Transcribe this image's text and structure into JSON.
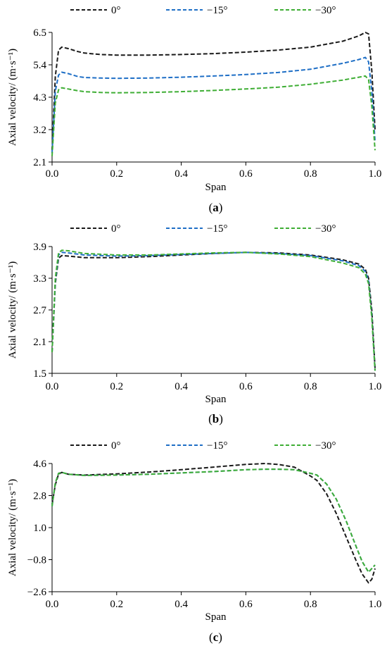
{
  "chart_data": [
    {
      "type": "line",
      "panel_label": "(a)",
      "panel_letter": "a",
      "xlabel": "Span",
      "ylabel": "Axial velocity/ (m·s⁻¹)",
      "xlim": [
        0.0,
        1.0
      ],
      "ylim": [
        2.1,
        6.5
      ],
      "xticks": [
        "0.0",
        "0.2",
        "0.4",
        "0.6",
        "0.8",
        "1.0"
      ],
      "yticks": [
        "2.1",
        "3.2",
        "4.3",
        "5.4",
        "6.5"
      ],
      "grid": false,
      "legend_position": "top",
      "series": [
        {
          "name": "0°",
          "color": "#1a1a1a",
          "x": [
            0.0,
            0.01,
            0.02,
            0.03,
            0.05,
            0.08,
            0.1,
            0.15,
            0.2,
            0.3,
            0.4,
            0.5,
            0.6,
            0.7,
            0.8,
            0.9,
            0.95,
            0.97,
            0.98,
            0.99,
            1.0
          ],
          "y": [
            2.5,
            5.0,
            5.9,
            6.0,
            5.95,
            5.85,
            5.8,
            5.75,
            5.73,
            5.73,
            5.75,
            5.78,
            5.83,
            5.9,
            6.0,
            6.2,
            6.38,
            6.5,
            6.45,
            5.2,
            3.2
          ]
        },
        {
          "name": "−15°",
          "color": "#1f6fc6",
          "x": [
            0.0,
            0.01,
            0.02,
            0.03,
            0.05,
            0.08,
            0.1,
            0.15,
            0.2,
            0.3,
            0.4,
            0.5,
            0.6,
            0.7,
            0.8,
            0.9,
            0.95,
            0.97,
            0.98,
            0.99,
            1.0
          ],
          "y": [
            2.4,
            4.5,
            5.05,
            5.15,
            5.1,
            5.0,
            4.97,
            4.95,
            4.94,
            4.95,
            4.98,
            5.02,
            5.07,
            5.14,
            5.25,
            5.45,
            5.58,
            5.65,
            5.5,
            4.5,
            2.8
          ]
        },
        {
          "name": "−30°",
          "color": "#3fae35",
          "x": [
            0.0,
            0.01,
            0.02,
            0.03,
            0.05,
            0.08,
            0.1,
            0.15,
            0.2,
            0.3,
            0.4,
            0.5,
            0.6,
            0.7,
            0.8,
            0.9,
            0.95,
            0.97,
            0.98,
            0.99,
            1.0
          ],
          "y": [
            2.3,
            4.1,
            4.55,
            4.62,
            4.58,
            4.52,
            4.49,
            4.46,
            4.45,
            4.46,
            4.49,
            4.53,
            4.58,
            4.64,
            4.74,
            4.88,
            4.98,
            5.02,
            4.9,
            4.0,
            2.5
          ]
        }
      ]
    },
    {
      "type": "line",
      "panel_label": "(b)",
      "panel_letter": "b",
      "xlabel": "Span",
      "ylabel": "Axial velocity/ (m·s⁻¹)",
      "xlim": [
        0.0,
        1.0
      ],
      "ylim": [
        1.5,
        3.9
      ],
      "xticks": [
        "0.0",
        "0.2",
        "0.4",
        "0.6",
        "0.8",
        "1.0"
      ],
      "yticks": [
        "1.5",
        "2.1",
        "2.7",
        "3.3",
        "3.9"
      ],
      "grid": false,
      "legend_position": "top",
      "series": [
        {
          "name": "0°",
          "color": "#1a1a1a",
          "x": [
            0.0,
            0.01,
            0.02,
            0.03,
            0.05,
            0.1,
            0.2,
            0.3,
            0.4,
            0.5,
            0.6,
            0.7,
            0.8,
            0.9,
            0.95,
            0.97,
            0.98,
            0.99,
            1.0
          ],
          "y": [
            1.9,
            3.2,
            3.68,
            3.73,
            3.72,
            3.69,
            3.69,
            3.71,
            3.74,
            3.77,
            3.79,
            3.78,
            3.74,
            3.65,
            3.57,
            3.47,
            3.3,
            2.7,
            1.6
          ]
        },
        {
          "name": "−15°",
          "color": "#1f6fc6",
          "x": [
            0.0,
            0.01,
            0.02,
            0.03,
            0.05,
            0.1,
            0.2,
            0.3,
            0.4,
            0.5,
            0.6,
            0.7,
            0.8,
            0.9,
            0.95,
            0.97,
            0.98,
            0.99,
            1.0
          ],
          "y": [
            1.9,
            3.25,
            3.74,
            3.79,
            3.78,
            3.74,
            3.72,
            3.73,
            3.75,
            3.77,
            3.79,
            3.77,
            3.73,
            3.63,
            3.54,
            3.43,
            3.25,
            2.6,
            1.55
          ]
        },
        {
          "name": "−30°",
          "color": "#3fae35",
          "x": [
            0.0,
            0.01,
            0.02,
            0.03,
            0.05,
            0.1,
            0.2,
            0.3,
            0.4,
            0.5,
            0.6,
            0.7,
            0.8,
            0.9,
            0.95,
            0.97,
            0.98,
            0.99,
            1.0
          ],
          "y": [
            1.9,
            3.3,
            3.78,
            3.83,
            3.82,
            3.77,
            3.74,
            3.74,
            3.76,
            3.78,
            3.79,
            3.76,
            3.71,
            3.59,
            3.5,
            3.38,
            3.2,
            2.55,
            1.55
          ]
        }
      ]
    },
    {
      "type": "line",
      "panel_label": "(c)",
      "panel_letter": "c",
      "xlabel": "Span",
      "ylabel": "Axial velocity/ (m·s⁻¹)",
      "xlim": [
        0.0,
        1.0
      ],
      "ylim": [
        -2.6,
        4.6
      ],
      "xticks": [
        "0.0",
        "0.2",
        "0.4",
        "0.6",
        "0.8",
        "1.0"
      ],
      "yticks": [
        "−2.6",
        "−0.8",
        "1.0",
        "2.8",
        "4.6"
      ],
      "grid": false,
      "legend_position": "top",
      "series": [
        {
          "name": "0°",
          "color": "#1a1a1a",
          "x": [
            0.0,
            0.01,
            0.02,
            0.03,
            0.05,
            0.1,
            0.2,
            0.3,
            0.4,
            0.5,
            0.6,
            0.66,
            0.7,
            0.75,
            0.8,
            0.82,
            0.85,
            0.88,
            0.91,
            0.94,
            0.96,
            0.98,
            0.99,
            1.0
          ],
          "y": [
            2.3,
            3.4,
            4.0,
            4.1,
            4.0,
            3.95,
            4.02,
            4.12,
            4.25,
            4.4,
            4.55,
            4.6,
            4.55,
            4.4,
            3.9,
            3.65,
            2.9,
            1.8,
            0.5,
            -0.8,
            -1.6,
            -2.1,
            -1.9,
            -1.3
          ]
        },
        {
          "name": "−15°",
          "color": "#1f6fc6",
          "x": [
            0.0,
            0.01,
            0.02,
            0.03,
            0.05,
            0.1,
            0.2,
            0.3,
            0.4,
            0.5,
            0.6,
            0.66,
            0.7,
            0.75,
            0.8,
            0.82,
            0.85,
            0.88,
            0.91,
            0.94,
            0.96,
            0.98,
            0.99,
            1.0
          ],
          "y": [
            2.2,
            3.5,
            4.05,
            4.1,
            4.0,
            3.93,
            3.95,
            4.0,
            4.07,
            4.15,
            4.25,
            4.28,
            4.28,
            4.25,
            4.05,
            3.95,
            3.45,
            2.6,
            1.4,
            0.0,
            -0.9,
            -1.5,
            -1.3,
            -1.1
          ]
        },
        {
          "name": "−30°",
          "color": "#3fae35",
          "x": [
            0.0,
            0.01,
            0.02,
            0.03,
            0.05,
            0.1,
            0.2,
            0.3,
            0.4,
            0.5,
            0.6,
            0.66,
            0.7,
            0.75,
            0.8,
            0.82,
            0.85,
            0.88,
            0.91,
            0.94,
            0.96,
            0.98,
            0.99,
            1.0
          ],
          "y": [
            2.2,
            3.5,
            4.05,
            4.1,
            4.0,
            3.93,
            3.95,
            4.0,
            4.07,
            4.15,
            4.25,
            4.28,
            4.28,
            4.25,
            4.05,
            3.95,
            3.45,
            2.6,
            1.4,
            0.0,
            -0.9,
            -1.5,
            -1.3,
            -1.1
          ]
        }
      ]
    }
  ]
}
